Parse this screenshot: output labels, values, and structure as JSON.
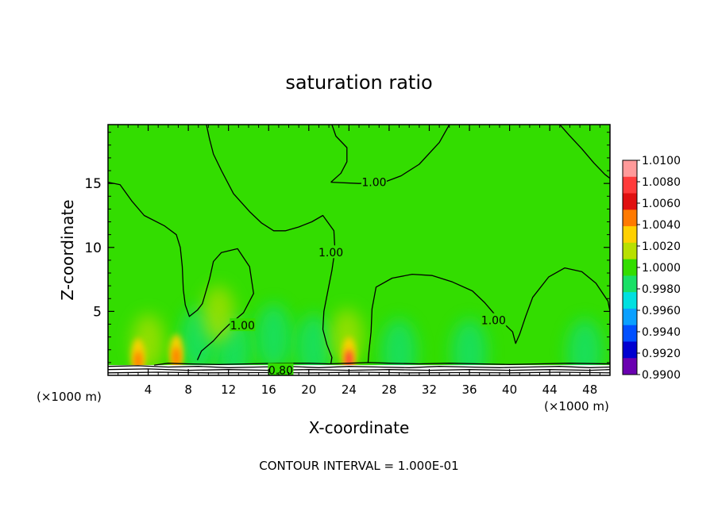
{
  "chart_data": {
    "type": "heatmap",
    "title": "saturation ratio",
    "xlabel": "X-coordinate",
    "ylabel": "Z-coordinate",
    "x_unit_left": "(×1000 m)",
    "x_unit_right": "(×1000 m)",
    "footer": "CONTOUR INTERVAL = 1.000E-01",
    "xlim": [
      0,
      50
    ],
    "ylim": [
      0,
      19.6
    ],
    "xticks": [
      "4",
      "8",
      "12",
      "16",
      "20",
      "24",
      "28",
      "32",
      "36",
      "40",
      "44",
      "48"
    ],
    "xtick_values": [
      4,
      8,
      12,
      16,
      20,
      24,
      28,
      32,
      36,
      40,
      44,
      48
    ],
    "yticks": [
      "5",
      "10",
      "15"
    ],
    "ytick_values": [
      5,
      10,
      15
    ],
    "colorbar": {
      "labels": [
        "1.0100",
        "1.0080",
        "1.0060",
        "1.0040",
        "1.0020",
        "1.0000",
        "0.9980",
        "0.9960",
        "0.9940",
        "0.9920",
        "0.9900"
      ],
      "colors": [
        "#ff9a9a",
        "#ff3b3b",
        "#e01010",
        "#ff7a00",
        "#ffd000",
        "#b8e000",
        "#33dd00",
        "#19e066",
        "#00e0e0",
        "#0aa0ff",
        "#0050ff",
        "#0000d0",
        "#6a00b0"
      ]
    },
    "background_color": "#33dd00",
    "contour_labels": [
      {
        "text": "1.00",
        "x": 26.5,
        "z": 15.1
      },
      {
        "text": "1.00",
        "x": 22.2,
        "z": 9.6
      },
      {
        "text": "1.00",
        "x": 13.4,
        "z": 3.9
      },
      {
        "text": "1.00",
        "x": 38.4,
        "z": 4.3
      },
      {
        "text": "0.80",
        "x": 17.2,
        "z": 0.4
      }
    ],
    "hotspots": [
      {
        "x": 24.0,
        "z": 1.2,
        "value": 1.008
      },
      {
        "x": 6.8,
        "z": 1.4,
        "value": 1.005
      },
      {
        "x": 3.0,
        "z": 1.1,
        "value": 1.004
      }
    ],
    "lowzones": [
      {
        "x": 16.5,
        "z": 3.0,
        "value": 0.998
      },
      {
        "x": 20.5,
        "z": 2.2,
        "value": 0.9985
      },
      {
        "x": 12.5,
        "z": 2.0,
        "value": 0.9985
      },
      {
        "x": 9.0,
        "z": 2.8,
        "value": 0.9985
      },
      {
        "x": 36.0,
        "z": 1.8,
        "value": 0.9985
      },
      {
        "x": 29.0,
        "z": 1.8,
        "value": 0.9988
      },
      {
        "x": 47.5,
        "z": 1.8,
        "value": 0.9988
      }
    ],
    "warmzones": [
      {
        "x": 4.0,
        "z": 2.6,
        "value": 1.001
      },
      {
        "x": 11.0,
        "z": 4.8,
        "value": 1.001
      },
      {
        "x": 23.8,
        "z": 3.0,
        "value": 1.002
      }
    ],
    "contours": [
      [
        [
          0,
          15.1
        ],
        [
          1.2,
          14.9
        ],
        [
          2.4,
          13.6
        ],
        [
          3.6,
          12.5
        ],
        [
          5.6,
          11.7
        ],
        [
          6.8,
          11.0
        ],
        [
          7.2,
          10.0
        ],
        [
          7.4,
          8.5
        ],
        [
          7.5,
          6.7
        ],
        [
          7.7,
          5.5
        ],
        [
          8.1,
          4.6
        ],
        [
          8.9,
          5.1
        ],
        [
          9.4,
          5.6
        ],
        [
          10.1,
          7.5
        ],
        [
          10.5,
          8.9
        ],
        [
          11.3,
          9.6
        ],
        [
          12.9,
          9.9
        ],
        [
          14.1,
          8.5
        ],
        [
          14.5,
          6.4
        ],
        [
          13.5,
          4.9
        ],
        [
          12.9,
          4.5
        ],
        [
          12.1,
          4.0
        ],
        [
          11.3,
          3.4
        ],
        [
          10.5,
          2.7
        ],
        [
          9.3,
          1.9
        ],
        [
          8.9,
          1.2
        ]
      ],
      [
        [
          9.8,
          19.6
        ],
        [
          10.1,
          18.5
        ],
        [
          10.5,
          17.3
        ],
        [
          11.3,
          16.0
        ],
        [
          12.5,
          14.2
        ],
        [
          14.1,
          12.8
        ],
        [
          15.3,
          11.9
        ],
        [
          16.5,
          11.3
        ],
        [
          17.7,
          11.3
        ],
        [
          19.0,
          11.6
        ],
        [
          20.3,
          12.0
        ],
        [
          21.4,
          12.5
        ],
        [
          22.5,
          11.3
        ],
        [
          22.6,
          9.8
        ],
        [
          22.3,
          8.2
        ],
        [
          21.9,
          6.6
        ],
        [
          21.5,
          5.0
        ],
        [
          21.4,
          3.6
        ],
        [
          21.8,
          2.4
        ],
        [
          22.3,
          1.4
        ],
        [
          22.2,
          0.9
        ]
      ],
      [
        [
          22.2,
          15.1
        ],
        [
          23.2,
          15.8
        ],
        [
          23.8,
          16.7
        ],
        [
          23.8,
          17.8
        ],
        [
          22.7,
          18.7
        ],
        [
          22.3,
          19.6
        ]
      ],
      [
        [
          22.2,
          15.1
        ],
        [
          25.0,
          15.0
        ],
        [
          27.5,
          15.1
        ],
        [
          29.2,
          15.6
        ],
        [
          31.0,
          16.5
        ],
        [
          33.0,
          18.2
        ],
        [
          34.0,
          19.6
        ]
      ],
      [
        [
          25.9,
          1.0
        ],
        [
          26.0,
          1.9
        ],
        [
          26.2,
          3.4
        ],
        [
          26.3,
          5.2
        ],
        [
          26.7,
          6.9
        ],
        [
          28.3,
          7.6
        ],
        [
          30.3,
          7.9
        ],
        [
          32.3,
          7.8
        ],
        [
          34.3,
          7.3
        ],
        [
          36.3,
          6.6
        ],
        [
          37.5,
          5.7
        ],
        [
          38.7,
          4.6
        ],
        [
          39.5,
          4.0
        ],
        [
          40.3,
          3.4
        ],
        [
          40.6,
          2.5
        ],
        [
          41.0,
          3.2
        ],
        [
          41.6,
          4.6
        ],
        [
          42.3,
          6.1
        ],
        [
          43.9,
          7.7
        ],
        [
          45.5,
          8.4
        ],
        [
          47.2,
          8.1
        ],
        [
          48.6,
          7.2
        ],
        [
          49.8,
          5.8
        ],
        [
          50,
          5.0
        ]
      ],
      [
        [
          45.0,
          19.6
        ],
        [
          45.9,
          18.8
        ],
        [
          47.2,
          17.7
        ],
        [
          48.4,
          16.6
        ],
        [
          49.5,
          15.7
        ],
        [
          50,
          15.4
        ]
      ],
      [
        [
          4.6,
          0.8
        ],
        [
          6.0,
          0.95
        ],
        [
          8.0,
          0.9
        ],
        [
          11.0,
          0.85
        ],
        [
          14.0,
          0.9
        ],
        [
          17.0,
          0.95
        ],
        [
          20.0,
          0.95
        ],
        [
          22.0,
          0.9
        ],
        [
          24.0,
          0.95
        ],
        [
          26.0,
          1.0
        ],
        [
          28.0,
          0.95
        ],
        [
          31.0,
          0.9
        ],
        [
          34.0,
          0.95
        ],
        [
          37.0,
          0.9
        ],
        [
          40.0,
          0.85
        ],
        [
          43.0,
          0.9
        ],
        [
          46.0,
          0.95
        ],
        [
          50,
          0.9
        ]
      ],
      [
        [
          0,
          0.7
        ],
        [
          3.0,
          0.75
        ],
        [
          6.0,
          0.65
        ],
        [
          9.0,
          0.7
        ],
        [
          12.0,
          0.6
        ],
        [
          15.0,
          0.65
        ],
        [
          18.0,
          0.7
        ],
        [
          21.0,
          0.6
        ],
        [
          24.0,
          0.7
        ],
        [
          27.0,
          0.65
        ],
        [
          30.0,
          0.6
        ],
        [
          33.0,
          0.7
        ],
        [
          36.0,
          0.65
        ],
        [
          39.0,
          0.6
        ],
        [
          42.0,
          0.65
        ],
        [
          45.0,
          0.7
        ],
        [
          48.0,
          0.6
        ],
        [
          50,
          0.65
        ]
      ],
      [
        [
          0,
          0.45
        ],
        [
          4.0,
          0.5
        ],
        [
          8.0,
          0.4
        ],
        [
          12.0,
          0.45
        ],
        [
          16.0,
          0.4
        ],
        [
          20.0,
          0.45
        ],
        [
          24.0,
          0.4
        ],
        [
          28.0,
          0.45
        ],
        [
          32.0,
          0.4
        ],
        [
          36.0,
          0.45
        ],
        [
          40.0,
          0.4
        ],
        [
          44.0,
          0.45
        ],
        [
          48.0,
          0.4
        ],
        [
          50,
          0.45
        ]
      ],
      [
        [
          0,
          0.2
        ],
        [
          5.0,
          0.25
        ],
        [
          10.0,
          0.2
        ],
        [
          15.0,
          0.22
        ],
        [
          20.0,
          0.2
        ],
        [
          25.0,
          0.25
        ],
        [
          30.0,
          0.2
        ],
        [
          35.0,
          0.22
        ],
        [
          40.0,
          0.2
        ],
        [
          45.0,
          0.25
        ],
        [
          50,
          0.2
        ]
      ]
    ]
  }
}
